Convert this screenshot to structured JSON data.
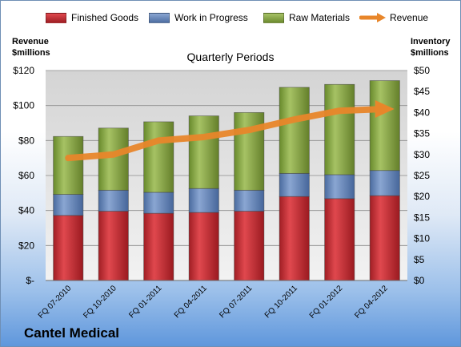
{
  "company": "Cantel Medical",
  "colors": {
    "finished_goods": "#c0272d",
    "work_in_progress": "#5b7fb3",
    "raw_materials": "#7a9a3a",
    "revenue": "#e8862a"
  },
  "chart_data": {
    "type": "bar",
    "stacked": true,
    "title": "Quarterly Periods",
    "ylabel_left": "Revenue $millions",
    "ylabel_right": "Inventory $millions",
    "categories": [
      "FQ 07-2010",
      "FQ 10-2010",
      "FQ 01-2011",
      "FQ 04-2011",
      "FQ 07-2011",
      "FQ 10-2011",
      "FQ 01-2012",
      "FQ 04-2012"
    ],
    "series": [
      {
        "name": "Finished Goods",
        "axis": "right",
        "values": [
          15.5,
          16.5,
          16.0,
          16.2,
          16.5,
          20.0,
          19.5,
          20.2
        ]
      },
      {
        "name": "Work in Progress",
        "axis": "right",
        "values": [
          5.0,
          5.0,
          5.0,
          5.7,
          5.0,
          5.5,
          5.7,
          6.0
        ]
      },
      {
        "name": "Raw Materials",
        "axis": "right",
        "values": [
          13.8,
          14.8,
          16.8,
          17.3,
          18.5,
          20.5,
          21.5,
          21.4
        ]
      },
      {
        "name": "Revenue",
        "type": "line",
        "axis": "left",
        "values": [
          70,
          72,
          80,
          82,
          86,
          92,
          97,
          98
        ]
      }
    ],
    "ylim_left": [
      0,
      120
    ],
    "ylim_right": [
      0,
      50
    ],
    "left_ticks": [
      "$-",
      "$20",
      "$40",
      "$60",
      "$80",
      "$100",
      "$120"
    ],
    "right_ticks": [
      "$0",
      "$5",
      "$10",
      "$15",
      "$20",
      "$25",
      "$30",
      "$35",
      "$40",
      "$45",
      "$50"
    ],
    "legend_position": "top",
    "grid": true
  }
}
